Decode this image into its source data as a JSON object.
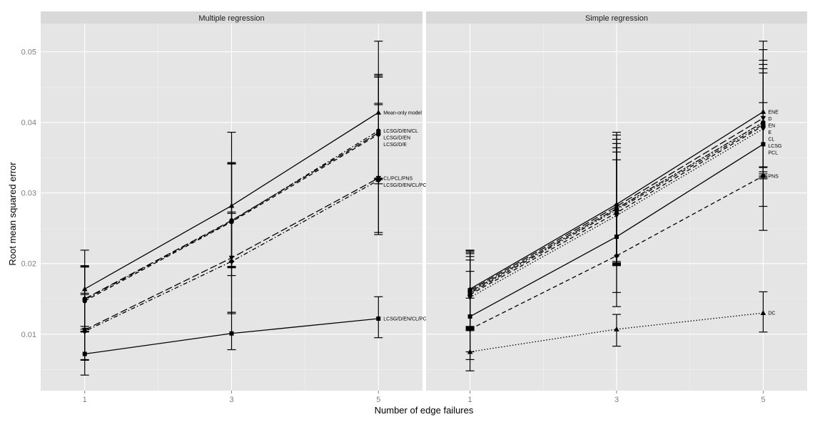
{
  "chart_data": {
    "type": "line",
    "xlabel": "Number of edge failures",
    "ylabel": "Root mean squared error",
    "x": [
      1,
      3,
      5
    ],
    "x_ticks": [
      "1",
      "3",
      "5"
    ],
    "y_ticks": [
      "0.01",
      "0.02",
      "0.03",
      "0.04",
      "0.05"
    ],
    "xlim": [
      0.4,
      5.6
    ],
    "ylim": [
      0.002,
      0.054
    ],
    "grid": true,
    "panels": [
      {
        "title": "Multiple regression",
        "series": [
          {
            "name": "Mean-only model",
            "values": [
              0.0164,
              0.0282,
              0.0414
            ],
            "err_low": [
              0.0107,
              0.0183,
              0.0313
            ],
            "err_high": [
              0.0219,
              0.0386,
              0.0515
            ],
            "linestyle": "solid",
            "marker": "triangle"
          },
          {
            "name": "LCSG/D/EN/CL",
            "values": [
              0.0149,
              0.026,
              0.0388
            ],
            "err_low": [
              0.0104,
              0.0195,
              0.0321
            ],
            "err_high": [
              0.0196,
              0.0343,
              0.0468
            ],
            "linestyle": "dotdash",
            "marker": "circle"
          },
          {
            "name": "LCSG/D/EN",
            "values": [
              0.015,
              0.0261,
              0.0385
            ],
            "err_low": [
              0.0104,
              0.0196,
              0.032
            ],
            "err_high": [
              0.0197,
              0.0342,
              0.0466
            ],
            "linestyle": "longdash",
            "marker": "circle"
          },
          {
            "name": "LCSG/D/E",
            "values": [
              0.0147,
              0.0259,
              0.0383
            ],
            "err_low": [
              0.0103,
              0.0194,
              0.0319
            ],
            "err_high": [
              0.0195,
              0.0341,
              0.0464
            ],
            "linestyle": "dashed",
            "marker": "circle"
          },
          {
            "name": "CL/PCL/PNS",
            "values": [
              0.0106,
              0.0208,
              0.0321
            ],
            "err_low": [
              0.0064,
              0.0131,
              0.0241
            ],
            "err_high": [
              0.0158,
              0.0273,
              0.0425
            ],
            "linestyle": "longdash",
            "marker": "triangle-down"
          },
          {
            "name": "LCSG/D/EN/CL/PCL/PNS",
            "values": [
              0.0104,
              0.0203,
              0.0318
            ],
            "err_low": [
              0.0063,
              0.0129,
              0.0244
            ],
            "err_high": [
              0.0156,
              0.0271,
              0.0427
            ],
            "linestyle": "dotdash",
            "marker": "diamond"
          },
          {
            "name": "LCSG/D/EN/CL/PCL/PNS/DC",
            "values": [
              0.0072,
              0.0101,
              0.0122
            ],
            "err_low": [
              0.0042,
              0.0078,
              0.0095
            ],
            "err_high": [
              0.0111,
              0.0131,
              0.0153
            ],
            "linestyle": "solid",
            "marker": "square"
          }
        ]
      },
      {
        "title": "Simple regression",
        "series": [
          {
            "name": "ENE",
            "values": [
              0.0164,
              0.0284,
              0.0415
            ],
            "err_low": [
              0.0111,
              0.0203,
              0.0337
            ],
            "err_high": [
              0.0219,
              0.0386,
              0.0515
            ],
            "linestyle": "solid",
            "marker": "triangle"
          },
          {
            "name": "D",
            "values": [
              0.0162,
              0.0281,
              0.0406
            ],
            "err_low": [
              0.011,
              0.0201,
              0.033
            ],
            "err_high": [
              0.0218,
              0.0382,
              0.0503
            ],
            "linestyle": "longdash",
            "marker": "triangle-down"
          },
          {
            "name": "EN",
            "values": [
              0.016,
              0.0278,
              0.04
            ],
            "err_low": [
              0.0109,
              0.02,
              0.0327
            ],
            "err_high": [
              0.0216,
              0.0376,
              0.0488
            ],
            "linestyle": "twodash",
            "marker": "circle"
          },
          {
            "name": "E",
            "values": [
              0.0158,
              0.0276,
              0.0397
            ],
            "err_low": [
              0.0108,
              0.0199,
              0.0324
            ],
            "err_high": [
              0.0214,
              0.037,
              0.0482
            ],
            "linestyle": "dotdash",
            "marker": "circle"
          },
          {
            "name": "CL",
            "values": [
              0.0156,
              0.0272,
              0.0395
            ],
            "err_low": [
              0.0107,
              0.0198,
              0.0322
            ],
            "err_high": [
              0.021,
              0.0364,
              0.0476
            ],
            "linestyle": "dashed",
            "marker": "circle"
          },
          {
            "name": "LCSG",
            "values": [
              0.0152,
              0.0268,
              0.0391
            ],
            "err_low": [
              0.0106,
              0.0197,
              0.032
            ],
            "err_high": [
              0.0205,
              0.0358,
              0.047
            ],
            "linestyle": "dotted",
            "marker": "triangle-down"
          },
          {
            "name": "PCL",
            "values": [
              0.0125,
              0.0238,
              0.0369
            ],
            "err_low": [
              0.0075,
              0.0159,
              0.0281
            ],
            "err_high": [
              0.0189,
              0.0347,
              0.0428
            ],
            "linestyle": "solid",
            "marker": "square"
          },
          {
            "name": "PNS",
            "values": [
              0.0107,
              0.0211,
              0.0324
            ],
            "err_low": [
              0.0064,
              0.0139,
              0.0247
            ],
            "err_high": [
              0.0151,
              0.0275,
              0.0336
            ],
            "linestyle": "dashed",
            "marker": "diamond"
          },
          {
            "name": "DC",
            "values": [
              0.0075,
              0.0107,
              0.013
            ],
            "err_low": [
              0.0048,
              0.0083,
              0.0103
            ],
            "err_high": [
              0.0105,
              0.0128,
              0.016
            ],
            "linestyle": "dotted",
            "marker": "triangle"
          }
        ]
      }
    ]
  }
}
